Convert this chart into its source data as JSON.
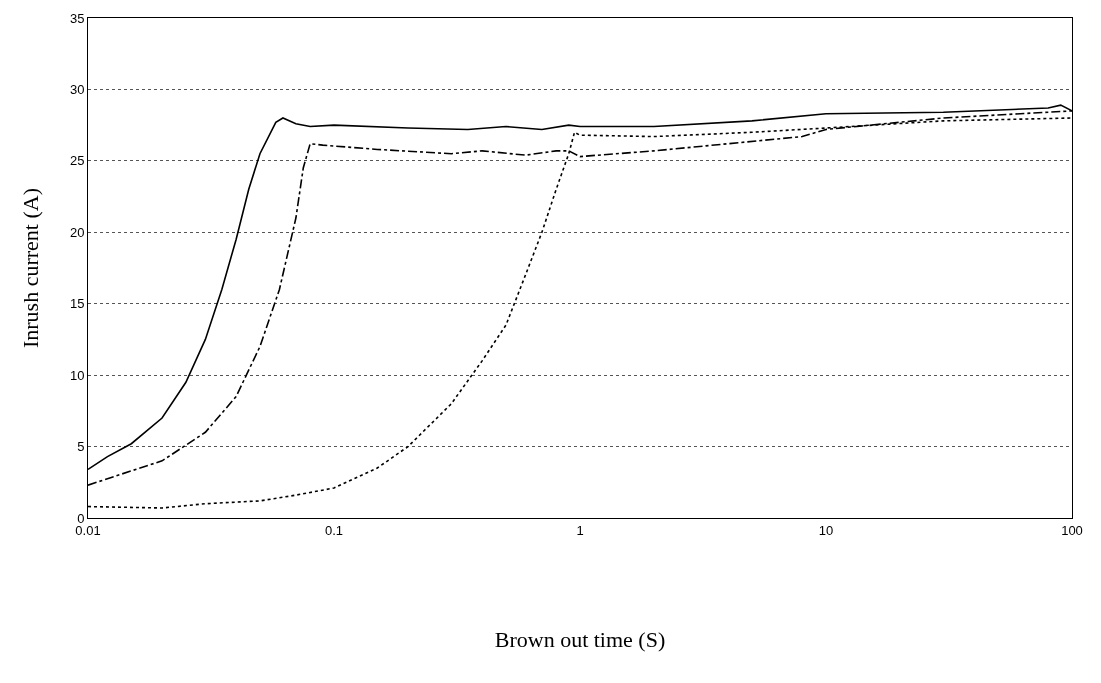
{
  "chart_data": {
    "type": "line",
    "xlabel": "Brown out time (S)",
    "ylabel": "Inrush current (A)",
    "log": "x",
    "grid": "y",
    "marker": "none",
    "xlim": [
      0.01,
      100
    ],
    "xticks": [
      {
        "value": 0.01,
        "label": "0.01"
      },
      {
        "value": 0.1,
        "label": "0.1"
      },
      1,
      10,
      100
    ],
    "ylim": [
      0,
      35
    ],
    "yticks": [
      0,
      5,
      10,
      15,
      20,
      25,
      30,
      35
    ],
    "series": [
      {
        "color": "#000000",
        "line_style": "solid",
        "x": [
          0.01,
          0.012,
          0.015,
          0.02,
          0.025,
          0.03,
          0.035,
          0.04,
          0.045,
          0.05,
          0.058,
          0.062,
          0.07,
          0.08,
          0.1,
          0.2,
          0.35,
          0.5,
          0.7,
          0.9,
          1,
          2,
          5,
          10,
          30,
          80,
          90,
          100
        ],
        "values": [
          3.4,
          4.3,
          5.2,
          7,
          9.5,
          12.5,
          16,
          19.5,
          23,
          25.5,
          27.7,
          28,
          27.6,
          27.4,
          27.5,
          27.3,
          27.2,
          27.4,
          27.2,
          27.5,
          27.4,
          27.4,
          27.8,
          28.3,
          28.4,
          28.7,
          28.9,
          28.5
        ]
      },
      {
        "color": "#000000",
        "line_style": "dashdot",
        "x": [
          0.01,
          0.015,
          0.02,
          0.03,
          0.04,
          0.05,
          0.06,
          0.07,
          0.075,
          0.08,
          0.09,
          0.15,
          0.3,
          0.4,
          0.6,
          0.8,
          0.9,
          1,
          2,
          4,
          8,
          10,
          30,
          100
        ],
        "values": [
          2.3,
          3.3,
          4,
          6,
          8.5,
          12,
          16,
          21,
          24.5,
          26.2,
          26.1,
          25.8,
          25.5,
          25.7,
          25.4,
          25.7,
          25.7,
          25.3,
          25.7,
          26.2,
          26.7,
          27.2,
          28,
          28.5
        ]
      },
      {
        "color": "#000000",
        "line_style": "dotted",
        "x": [
          0.01,
          0.02,
          0.03,
          0.05,
          0.07,
          0.1,
          0.15,
          0.2,
          0.3,
          0.4,
          0.5,
          0.6,
          0.7,
          0.8,
          0.9,
          0.95,
          1,
          2,
          5,
          10,
          30,
          100
        ],
        "values": [
          0.8,
          0.7,
          1,
          1.2,
          1.6,
          2.1,
          3.5,
          5,
          8,
          11,
          13.5,
          17,
          20,
          23,
          25.5,
          27,
          26.8,
          26.7,
          27,
          27.3,
          27.8,
          28
        ]
      }
    ]
  }
}
